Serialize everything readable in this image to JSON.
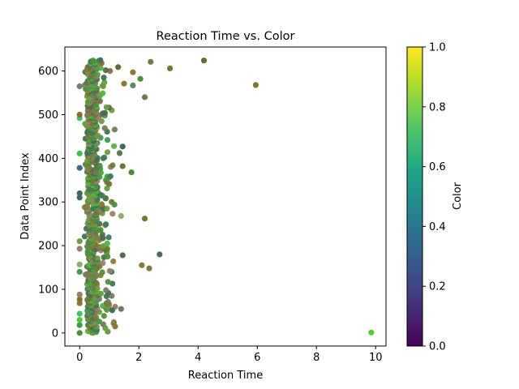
{
  "chart_data": {
    "type": "scatter",
    "title": "Reaction Time vs. Color",
    "xlabel": "Reaction Time",
    "ylabel": "Data Point Index",
    "xlim": [
      -0.5,
      10.35
    ],
    "ylim": [
      -30,
      655
    ],
    "xticks": [
      0,
      2,
      4,
      6,
      8,
      10
    ],
    "yticks": [
      0,
      100,
      200,
      300,
      400,
      500,
      600
    ],
    "grid": false,
    "colorbar": {
      "label": "Color",
      "range": [
        0.0,
        1.0
      ],
      "ticks": [
        "0.0",
        "0.2",
        "0.4",
        "0.6",
        "0.8",
        "1.0"
      ],
      "colormap": "viridis",
      "stops": [
        "#440154",
        "#482475",
        "#414487",
        "#355f8d",
        "#2a788e",
        "#21918c",
        "#22a884",
        "#44bf70",
        "#7ad151",
        "#bddf26",
        "#fde725"
      ]
    },
    "point_colors": [
      "#6b7a34",
      "#4e8f3a",
      "#8a7a3a",
      "#5aa13c",
      "#3f6f55",
      "#7a7a5a",
      "#57b044",
      "#3f9a4a",
      "#8a6a3a",
      "#4c6e4e",
      "#6f9a40",
      "#9a7f6a",
      "#3d7a5f"
    ],
    "outliers": [
      {
        "x": 9.85,
        "y": 1,
        "c": "#57c43a"
      },
      {
        "x": 5.95,
        "y": 568,
        "c": "#7a7a2f"
      },
      {
        "x": 4.2,
        "y": 624,
        "c": "#6b6a2f"
      },
      {
        "x": 3.05,
        "y": 606,
        "c": "#6f7a33"
      },
      {
        "x": 2.4,
        "y": 621,
        "c": "#6d7a4a"
      },
      {
        "x": 2.2,
        "y": 540,
        "c": "#6b7a5a"
      },
      {
        "x": 2.7,
        "y": 180,
        "c": "#4c6e4e"
      },
      {
        "x": 2.35,
        "y": 148,
        "c": "#8a7a3a"
      },
      {
        "x": 2.1,
        "y": 155,
        "c": "#8a7a3a"
      },
      {
        "x": 2.2,
        "y": 262,
        "c": "#6b7a34"
      },
      {
        "x": 2.05,
        "y": 582,
        "c": "#4e8f3a"
      },
      {
        "x": 1.8,
        "y": 597,
        "c": "#8a7a3a"
      },
      {
        "x": 1.8,
        "y": 567,
        "c": "#5a8a6a"
      },
      {
        "x": 1.5,
        "y": 571,
        "c": "#8a7a3a"
      },
      {
        "x": 1.3,
        "y": 609,
        "c": "#6b6a3a"
      },
      {
        "x": 1.75,
        "y": 368,
        "c": "#4e8f3a"
      },
      {
        "x": 1.45,
        "y": 382,
        "c": "#6b7a34"
      },
      {
        "x": 1.45,
        "y": 427,
        "c": "#3d6a5f"
      },
      {
        "x": 1.35,
        "y": 412,
        "c": "#5a7a5a"
      },
      {
        "x": 1.4,
        "y": 268,
        "c": "#8ab06a"
      },
      {
        "x": 1.45,
        "y": 178,
        "c": "#4c6e4e"
      },
      {
        "x": 1.4,
        "y": 55,
        "c": "#6a7a6a"
      },
      {
        "x": 1.2,
        "y": 60,
        "c": "#9a7f6a"
      },
      {
        "x": 1.2,
        "y": 15,
        "c": "#8a7a3a"
      },
      {
        "x": 1.15,
        "y": 22,
        "c": "#8a7a3a"
      },
      {
        "x": 1.1,
        "y": 52,
        "c": "#3f6f55"
      },
      {
        "x": 0.95,
        "y": 3,
        "c": "#6f9a40"
      },
      {
        "x": 0.0,
        "y": 0,
        "c": "#4e8f3a"
      },
      {
        "x": 0.0,
        "y": 18,
        "c": "#3f9a4a"
      },
      {
        "x": 0.0,
        "y": 30,
        "c": "#57c43a"
      },
      {
        "x": 0.0,
        "y": 44,
        "c": "#44bf70"
      },
      {
        "x": 0.0,
        "y": 68,
        "c": "#8a7a3a"
      },
      {
        "x": 0.0,
        "y": 77,
        "c": "#8a6a3a"
      },
      {
        "x": 0.0,
        "y": 88,
        "c": "#9a7f6a"
      },
      {
        "x": 0.0,
        "y": 140,
        "c": "#3f9a4a"
      },
      {
        "x": 0.0,
        "y": 157,
        "c": "#8ab06a"
      },
      {
        "x": 0.0,
        "y": 193,
        "c": "#9a7f6a"
      },
      {
        "x": 0.0,
        "y": 210,
        "c": "#6f9a40"
      },
      {
        "x": 0.0,
        "y": 310,
        "c": "#3d6a5f"
      },
      {
        "x": 0.0,
        "y": 320,
        "c": "#3d6a5f"
      },
      {
        "x": 0.0,
        "y": 378,
        "c": "#3d6a8f"
      },
      {
        "x": 0.0,
        "y": 411,
        "c": "#44bf4a"
      },
      {
        "x": 0.0,
        "y": 492,
        "c": "#44bf70"
      },
      {
        "x": 0.0,
        "y": 500,
        "c": "#8a6a3a"
      },
      {
        "x": 0.0,
        "y": 565,
        "c": "#7a7a6a"
      }
    ]
  }
}
